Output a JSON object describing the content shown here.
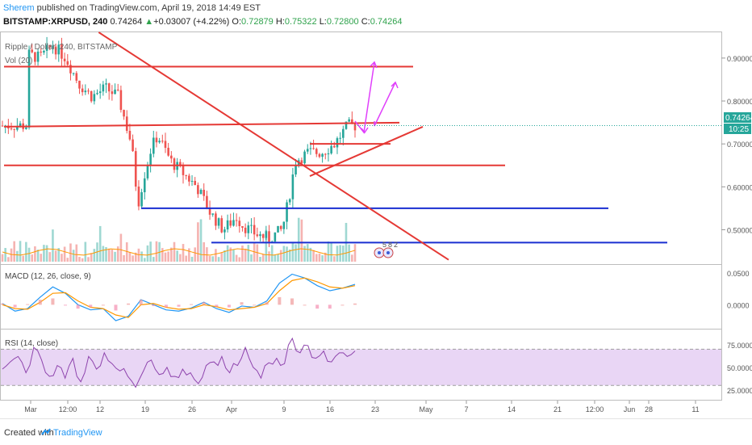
{
  "header": {
    "author": "Sherem",
    "published_text": " published on TradingView.com, April 19, 2018 14:49 EST",
    "symbol": "BITSTAMP:XRPUSD, 240",
    "last": "0.74264",
    "change": "+0.03007 (+4.22%)",
    "o_label": "O:",
    "o_value": "0.72879",
    "h_label": "H:",
    "h_value": "0.75322",
    "l_label": "L:",
    "l_value": "0.72800",
    "c_label": "C:",
    "c_value": "0.74264"
  },
  "legend": {
    "main": "Ripple / Dollar, 240, BITSTAMP",
    "vol": "Vol (20)",
    "macd": "MACD (12, 26, close, 9)",
    "rsi": "RSI (14, close)"
  },
  "price_badges": {
    "price": "0.74264",
    "countdown": "10:25"
  },
  "event_badges": [
    "5",
    "8",
    "2"
  ],
  "footer": {
    "created_with": "Created with",
    "brand": "TradingView"
  },
  "colors": {
    "up": "#26a69a",
    "down": "#ef5350",
    "trend_red": "#e53935",
    "support_blue": "#1a2fd1",
    "arrow": "#e040fb",
    "macd": "#2196f3",
    "signal": "#ff9800",
    "rsi": "#8e44ad",
    "rsi_band": "#e9d6f5"
  },
  "chart_data": [
    {
      "type": "candlestick",
      "title": "Ripple / Dollar, 240, BITSTAMP",
      "ylim": [
        0.42,
        0.96
      ],
      "y_ticks": [
        0.5,
        0.6,
        0.7,
        0.8,
        0.9
      ],
      "y_tick_labels": [
        "0.50000",
        "0.60000",
        "0.70000",
        "0.80000",
        "0.90000"
      ],
      "x_ticks": [
        "Mar",
        "12:00",
        "12",
        "19",
        "26",
        "Apr",
        "9",
        "16",
        "23",
        "May",
        "7",
        "14",
        "21",
        "12:00",
        "28",
        "Jun",
        "11"
      ],
      "last_price": 0.74264,
      "price_path": [
        [
          "Mar 1",
          0.91
        ],
        [
          "Mar 3",
          0.9
        ],
        [
          "Mar 5",
          0.93
        ],
        [
          "Mar 7",
          0.9
        ],
        [
          "Mar 9",
          0.84
        ],
        [
          "Mar 11",
          0.81
        ],
        [
          "Mar 13",
          0.83
        ],
        [
          "Mar 15",
          0.81
        ],
        [
          "Mar 17",
          0.7
        ],
        [
          "Mar 18",
          0.56
        ],
        [
          "Mar 19",
          0.63
        ],
        [
          "Mar 20",
          0.69
        ],
        [
          "Mar 21",
          0.72
        ],
        [
          "Mar 23",
          0.66
        ],
        [
          "Mar 25",
          0.63
        ],
        [
          "Mar 27",
          0.6
        ],
        [
          "Mar 29",
          0.54
        ],
        [
          "Mar 31",
          0.5
        ],
        [
          "Apr 2",
          0.53
        ],
        [
          "Apr 3",
          0.51
        ],
        [
          "Apr 5",
          0.49
        ],
        [
          "Apr 7",
          0.48
        ],
        [
          "Apr 9",
          0.5
        ],
        [
          "Apr 10",
          0.57
        ],
        [
          "Apr 11",
          0.66
        ],
        [
          "Apr 13",
          0.68
        ],
        [
          "Apr 15",
          0.68
        ],
        [
          "Apr 17",
          0.7
        ],
        [
          "Apr 19",
          0.74264
        ]
      ],
      "annotations": {
        "horizontal_resistance": [
          0.88,
          0.74,
          0.65
        ],
        "horizontal_support": [
          0.55,
          0.47
        ],
        "descending_trendline": [
          [
            "Mar 12",
            0.96
          ],
          [
            "Apr 24",
            0.43
          ]
        ],
        "ascending_trendline": [
          [
            "Apr 11",
            0.625
          ],
          [
            "Apr 27",
            0.74
          ]
        ],
        "projection_arrows": 2
      }
    },
    {
      "type": "bar",
      "title": "Vol (20)",
      "series": [
        {
          "name": "Vol (20)"
        }
      ]
    },
    {
      "type": "line",
      "title": "MACD (12, 26, close, 9)",
      "y_tick_labels": [
        "0.0500",
        "0.0000"
      ],
      "ylim": [
        -0.035,
        0.06
      ],
      "series": [
        {
          "name": "MACD",
          "values": [
            0.002,
            -0.01,
            -0.006,
            0.012,
            0.028,
            0.018,
            0.0,
            -0.008,
            -0.006,
            -0.025,
            -0.018,
            0.008,
            0.0,
            -0.008,
            -0.01,
            -0.005,
            0.004,
            -0.006,
            -0.012,
            -0.002,
            -0.004,
            0.006,
            0.034,
            0.048,
            0.042,
            0.03,
            0.022,
            0.026,
            0.032
          ]
        },
        {
          "name": "Signal",
          "values": [
            0.0,
            -0.006,
            -0.007,
            0.004,
            0.018,
            0.019,
            0.006,
            -0.004,
            -0.006,
            -0.016,
            -0.02,
            0.0,
            0.002,
            -0.004,
            -0.007,
            -0.006,
            0.0,
            -0.003,
            -0.008,
            -0.006,
            -0.004,
            0.002,
            0.022,
            0.038,
            0.042,
            0.036,
            0.028,
            0.026,
            0.03
          ]
        }
      ]
    },
    {
      "type": "line",
      "title": "RSI (14, close)",
      "y_tick_labels": [
        "75.0000",
        "50.0000",
        "25.0000"
      ],
      "ylim": [
        15,
        90
      ],
      "series": [
        {
          "name": "RSI",
          "values": [
            48,
            56,
            62,
            44,
            72,
            58,
            40,
            52,
            38,
            60,
            34,
            62,
            48,
            66,
            54,
            46,
            40,
            28,
            46,
            58,
            42,
            50,
            40,
            48,
            44,
            32,
            52,
            56,
            62,
            44,
            52,
            72,
            50,
            38,
            55,
            60,
            54,
            82,
            66,
            74,
            60,
            68,
            56,
            66,
            62,
            68
          ]
        }
      ]
    }
  ]
}
